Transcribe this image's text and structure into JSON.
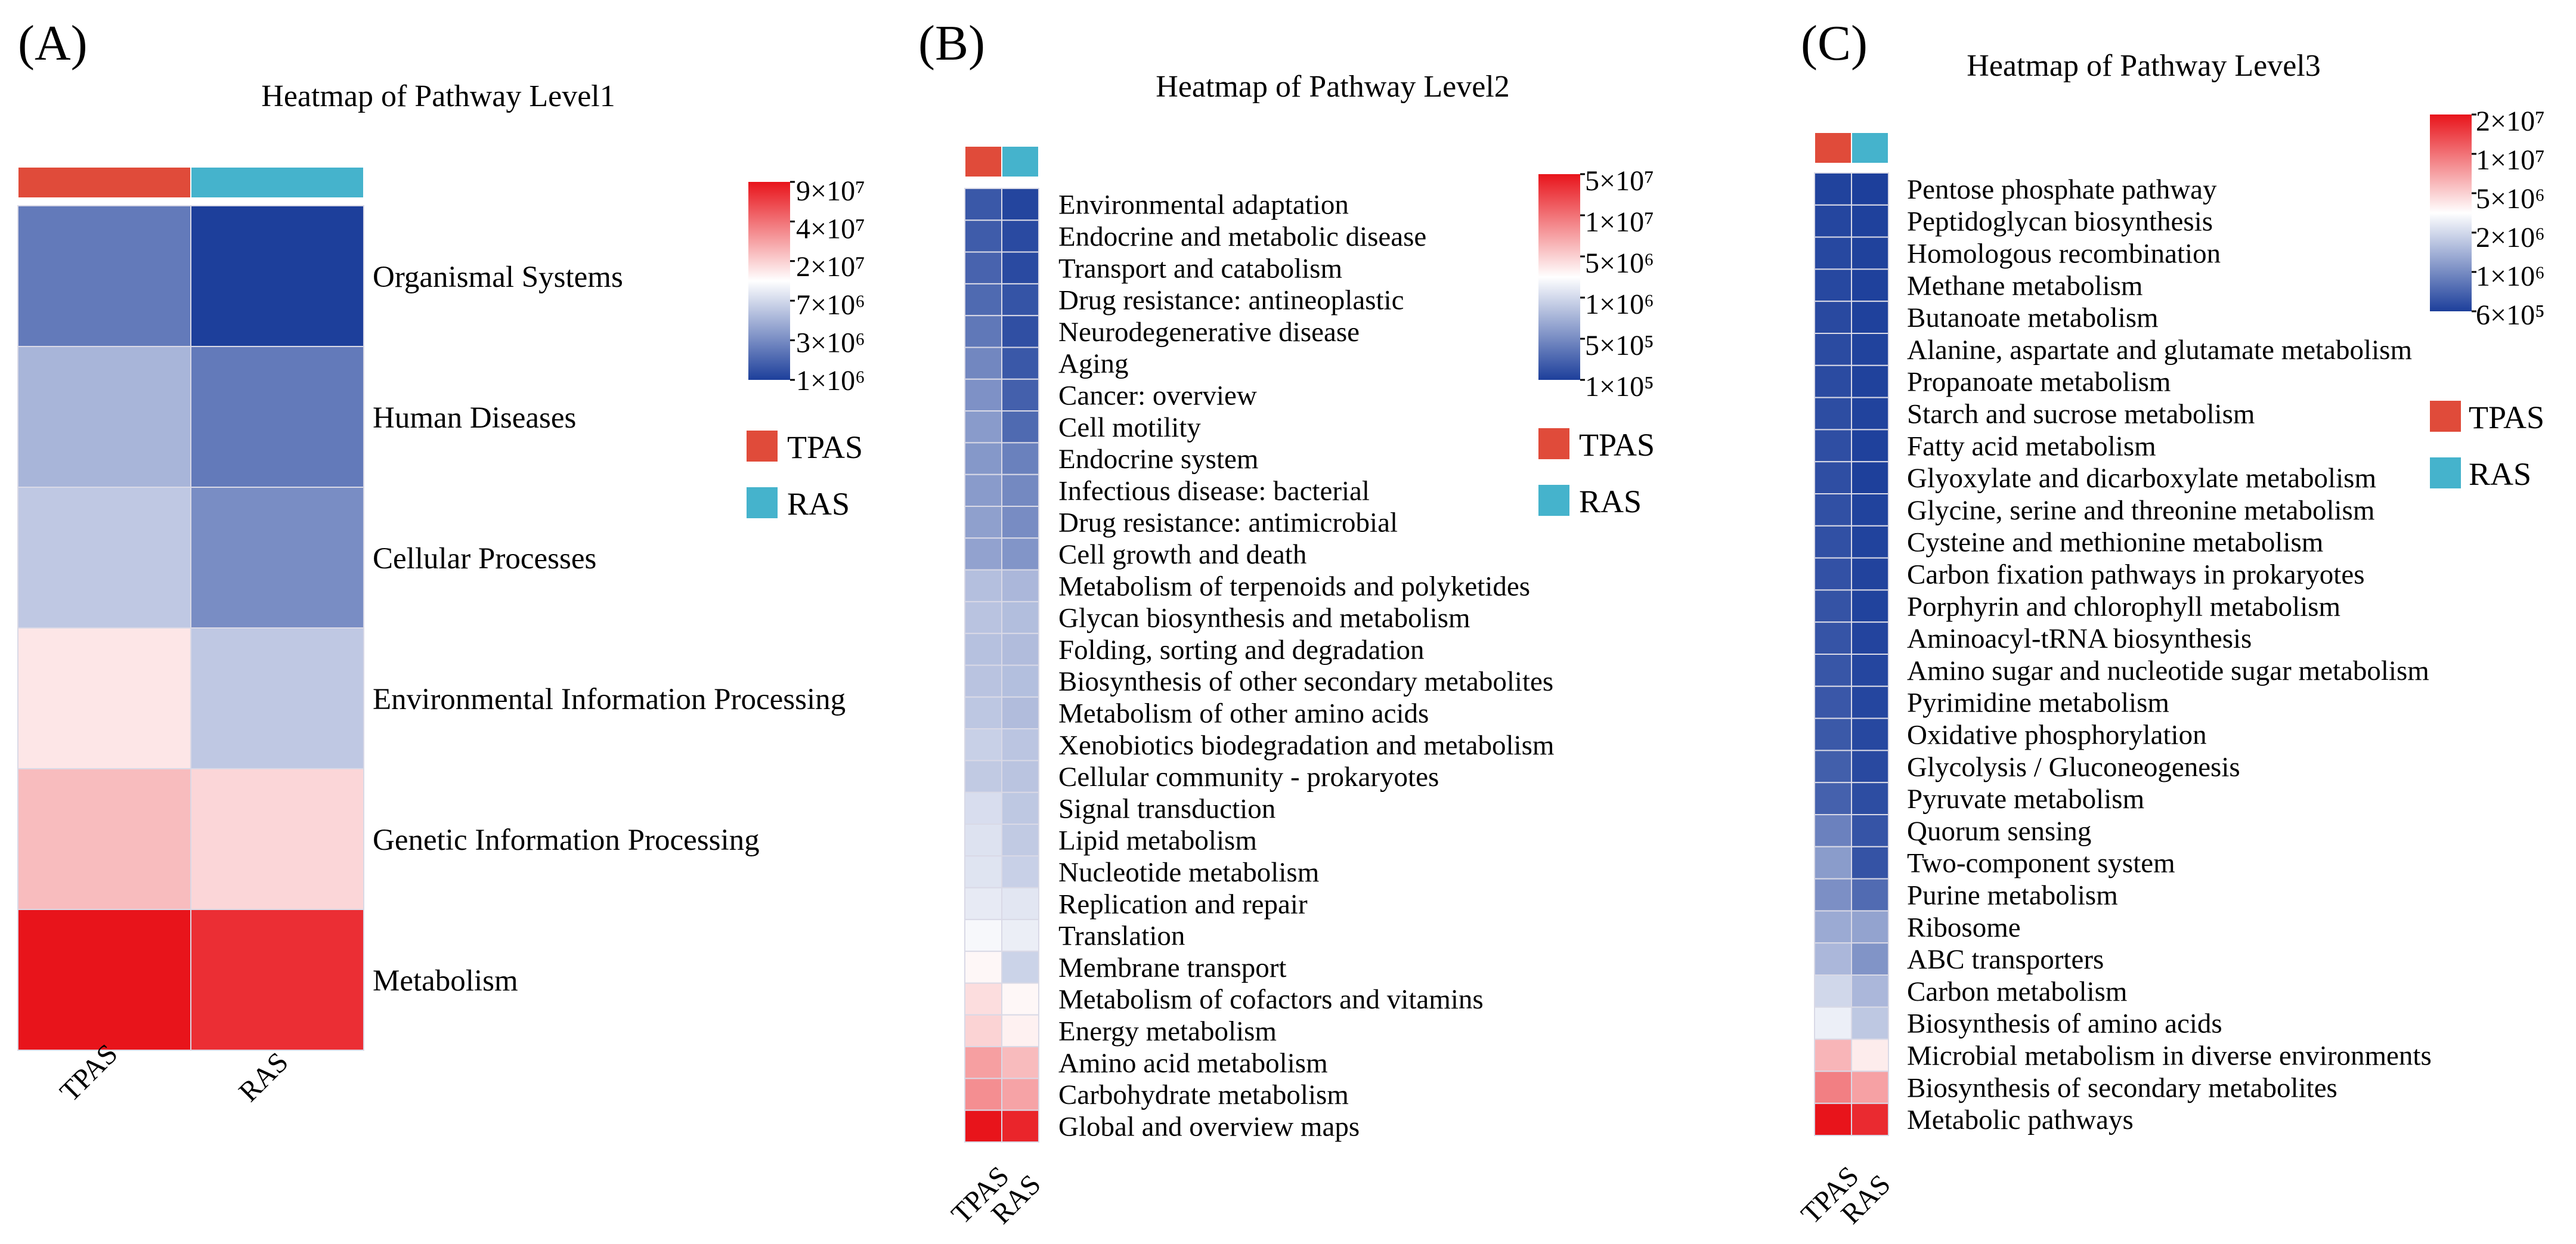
{
  "chart_data": [
    {
      "type": "heatmap",
      "panel_label": "(A)",
      "title": "Heatmap of Pathway Level1",
      "columns": [
        "TPAS",
        "RAS"
      ],
      "column_colors": {
        "TPAS": "#e04b3a",
        "RAS": "#45b3cc"
      },
      "rows": [
        "Organismal Systems",
        "Human Diseases",
        "Cellular Processes",
        "Environmental Information Processing",
        "Genetic Information Processing",
        "Metabolism"
      ],
      "values": [
        [
          2000000,
          1000000
        ],
        [
          4000000,
          2000000
        ],
        [
          5000000,
          2500000
        ],
        [
          12000000,
          5000000
        ],
        [
          18000000,
          14000000
        ],
        [
          90000000,
          70000000
        ]
      ],
      "colorbar": {
        "ticks": [
          {
            "value": 90000000,
            "label": "9×10⁷"
          },
          {
            "value": 40000000,
            "label": "4×10⁷"
          },
          {
            "value": 20000000,
            "label": "2×10⁷"
          },
          {
            "value": 7000000,
            "label": "7×10⁶"
          },
          {
            "value": 3000000,
            "label": "3×10⁶"
          },
          {
            "value": 1000000,
            "label": "1×10⁶"
          }
        ],
        "colors": [
          "#e8141b",
          "#ffffff",
          "#1d3f9b"
        ]
      },
      "legend": [
        "TPAS",
        "RAS"
      ]
    },
    {
      "type": "heatmap",
      "panel_label": "(B)",
      "title": "Heatmap of Pathway Level2",
      "columns": [
        "TPAS",
        "RAS"
      ],
      "column_colors": {
        "TPAS": "#e04b3a",
        "RAS": "#45b3cc"
      },
      "rows": [
        "Environmental adaptation",
        "Endocrine and metabolic disease",
        "Transport and catabolism",
        "Drug resistance: antineoplastic",
        "Neurodegenerative disease",
        "Aging",
        "Cancer: overview",
        "Cell motility",
        "Endocrine system",
        "Infectious disease: bacterial",
        "Drug resistance: antimicrobial",
        "Cell growth and death",
        "Metabolism of terpenoids and polyketides",
        "Glycan biosynthesis and metabolism",
        "Folding, sorting and degradation",
        "Biosynthesis of other secondary metabolites",
        "Metabolism of other amino acids",
        "Xenobiotics biodegradation and metabolism",
        "Cellular community - prokaryotes",
        "Signal transduction",
        "Lipid metabolism",
        "Nucleotide metabolism",
        "Replication and repair",
        "Translation",
        "Membrane transport",
        "Metabolism of cofactors and vitamins",
        "Energy metabolism",
        "Amino acid metabolism",
        "Carbohydrate metabolism",
        "Global and overview maps"
      ],
      "values": [
        [
          150000,
          110000
        ],
        [
          160000,
          120000
        ],
        [
          180000,
          120000
        ],
        [
          200000,
          140000
        ],
        [
          250000,
          130000
        ],
        [
          320000,
          150000
        ],
        [
          380000,
          170000
        ],
        [
          440000,
          200000
        ],
        [
          420000,
          290000
        ],
        [
          440000,
          330000
        ],
        [
          480000,
          350000
        ],
        [
          500000,
          400000
        ],
        [
          800000,
          700000
        ],
        [
          850000,
          780000
        ],
        [
          820000,
          760000
        ],
        [
          850000,
          790000
        ],
        [
          900000,
          760000
        ],
        [
          1050000,
          880000
        ],
        [
          950000,
          860000
        ],
        [
          1300000,
          920000
        ],
        [
          1400000,
          950000
        ],
        [
          1450000,
          1050000
        ],
        [
          1600000,
          1500000
        ],
        [
          2000000,
          1700000
        ],
        [
          2500000,
          1100000
        ],
        [
          3500000,
          2500000
        ],
        [
          4000000,
          2700000
        ],
        [
          8000000,
          5500000
        ],
        [
          10000000,
          7500000
        ],
        [
          50000000,
          40000000
        ]
      ],
      "colorbar": {
        "ticks": [
          {
            "value": 50000000,
            "label": "5×10⁷"
          },
          {
            "value": 10000000,
            "label": "1×10⁷"
          },
          {
            "value": 5000000,
            "label": "5×10⁶"
          },
          {
            "value": 1000000,
            "label": "1×10⁶"
          },
          {
            "value": 500000,
            "label": "5×10⁵"
          },
          {
            "value": 100000,
            "label": "1×10⁵"
          }
        ],
        "colors": [
          "#e8141b",
          "#ffffff",
          "#1d3f9b"
        ]
      },
      "legend": [
        "TPAS",
        "RAS"
      ]
    },
    {
      "type": "heatmap",
      "panel_label": "(C)",
      "title": "Heatmap of Pathway Level3",
      "columns": [
        "TPAS",
        "RAS"
      ],
      "column_colors": {
        "TPAS": "#e04b3a",
        "RAS": "#45b3cc"
      },
      "rows": [
        "Pentose phosphate pathway",
        "Peptidoglycan biosynthesis",
        "Homologous recombination",
        "Methane metabolism",
        "Butanoate metabolism",
        "Alanine, aspartate and glutamate metabolism",
        "Propanoate metabolism",
        "Starch and sucrose metabolism",
        "Fatty acid metabolism",
        "Glyoxylate and dicarboxylate metabolism",
        "Glycine, serine and threonine metabolism",
        "Cysteine and methionine metabolism",
        "Carbon fixation pathways in prokaryotes",
        "Porphyrin and chlorophyll metabolism",
        "Aminoacyl-tRNA biosynthesis",
        "Amino sugar and nucleotide sugar metabolism",
        "Pyrimidine metabolism",
        "Oxidative phosphorylation",
        "Glycolysis / Gluconeogenesis",
        "Pyruvate metabolism",
        "Quorum sensing",
        "Two-component system",
        "Purine metabolism",
        "Ribosome",
        "ABC transporters",
        "Carbon metabolism",
        "Biosynthesis of amino acids",
        "Microbial metabolism in diverse environments",
        "Biosynthesis of secondary metabolites",
        "Metabolic pathways"
      ],
      "values": [
        [
          620000,
          600000
        ],
        [
          640000,
          610000
        ],
        [
          650000,
          615000
        ],
        [
          650000,
          610000
        ],
        [
          660000,
          610000
        ],
        [
          670000,
          620000
        ],
        [
          670000,
          615000
        ],
        [
          680000,
          620000
        ],
        [
          690000,
          610000
        ],
        [
          690000,
          605000
        ],
        [
          700000,
          620000
        ],
        [
          700000,
          620000
        ],
        [
          710000,
          625000
        ],
        [
          720000,
          620000
        ],
        [
          730000,
          630000
        ],
        [
          740000,
          640000
        ],
        [
          750000,
          640000
        ],
        [
          760000,
          650000
        ],
        [
          800000,
          660000
        ],
        [
          820000,
          680000
        ],
        [
          1100000,
          730000
        ],
        [
          1400000,
          720000
        ],
        [
          1250000,
          900000
        ],
        [
          1600000,
          1500000
        ],
        [
          1800000,
          1300000
        ],
        [
          2400000,
          1800000
        ],
        [
          3000000,
          2100000
        ],
        [
          6000000,
          4000000
        ],
        [
          9000000,
          7000000
        ],
        [
          20000000,
          17000000
        ]
      ],
      "colorbar": {
        "ticks": [
          {
            "value": 20000000,
            "label": "2×10⁷"
          },
          {
            "value": 10000000,
            "label": "1×10⁷"
          },
          {
            "value": 5000000,
            "label": "5×10⁶"
          },
          {
            "value": 2000000,
            "label": "2×10⁶"
          },
          {
            "value": 1000000,
            "label": "1×10⁶"
          },
          {
            "value": 600000,
            "label": "6×10⁵"
          }
        ],
        "colors": [
          "#e8141b",
          "#ffffff",
          "#1d3f9b"
        ]
      },
      "legend": [
        "TPAS",
        "RAS"
      ]
    }
  ]
}
